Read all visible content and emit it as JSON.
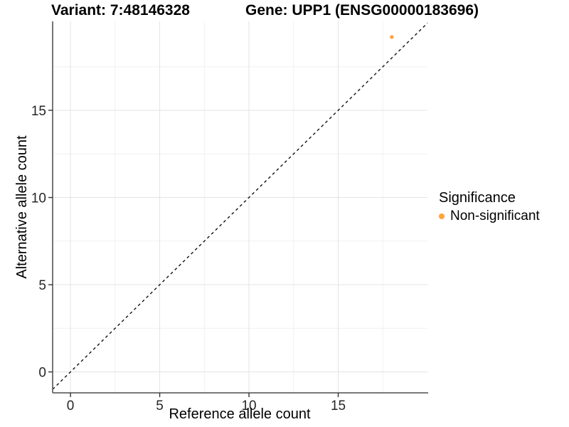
{
  "titles": {
    "variant": "Variant: 7:48146328",
    "gene": "Gene: UPP1 (ENSG00000183696)"
  },
  "chart_data": {
    "type": "scatter",
    "title_left": "Variant: 7:48146328",
    "title_right": "Gene: UPP1 (ENSG00000183696)",
    "xlabel": "Reference allele count",
    "ylabel": "Alternative allele count",
    "xlim": [
      -1,
      20
    ],
    "ylim": [
      -1.2,
      20.1
    ],
    "x_ticks": [
      0,
      5,
      10,
      15
    ],
    "y_ticks": [
      0,
      5,
      10,
      15
    ],
    "x_minor": [
      2.5,
      7.5,
      12.5,
      17.5
    ],
    "y_minor": [
      2.5,
      7.5,
      12.5,
      17.5
    ],
    "grid": true,
    "series": [
      {
        "name": "Non-significant",
        "color": "#FFA33C",
        "points": [
          {
            "x": 18,
            "y": 19.2
          }
        ]
      }
    ],
    "identity_line": {
      "slope": 1,
      "intercept": 0,
      "style": "dashed",
      "color": "#111111"
    },
    "legend": {
      "title": "Significance",
      "position": "right",
      "items": [
        {
          "label": "Non-significant",
          "color": "#FFA33C"
        }
      ]
    },
    "colors": {
      "grid_major": "#e3e3e3",
      "grid_minor": "#f0f0f0",
      "axis_line": "#666666",
      "tick": "#333333",
      "tick_label": "#262626",
      "background": "#ffffff"
    }
  }
}
